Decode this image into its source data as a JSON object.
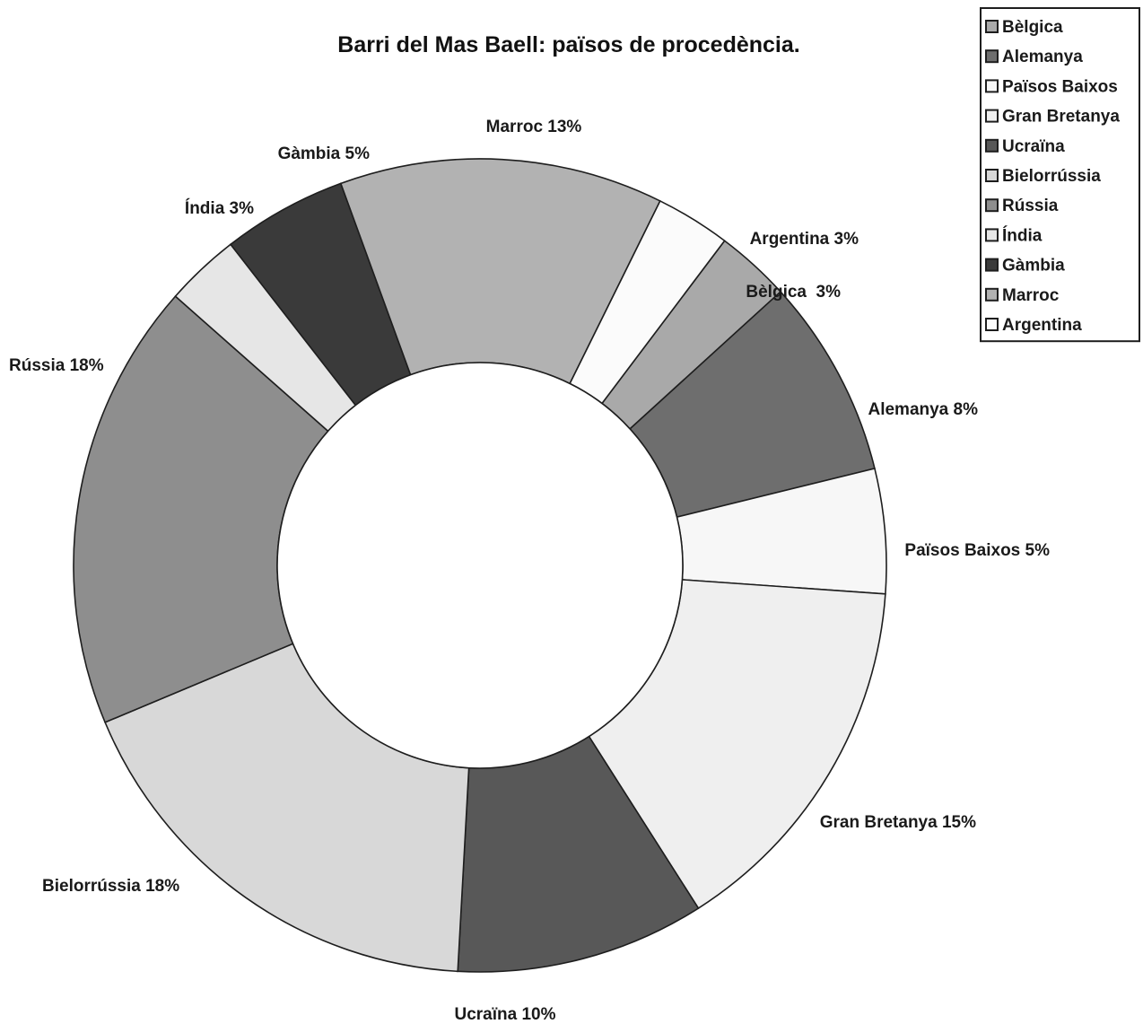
{
  "chart_data": {
    "type": "pie",
    "variant": "donut",
    "title": "Barri del Mas Baell: països de procedència.",
    "unit": "%",
    "slices": [
      {
        "name": "Bèlgica",
        "value": 3,
        "label": "Bèlgica  3%",
        "color": "#a9a9a9"
      },
      {
        "name": "Alemanya",
        "value": 8,
        "label": "Alemanya 8%",
        "color": "#6e6e6e"
      },
      {
        "name": "Països Baixos",
        "value": 5,
        "label": "Països Baixos 5%",
        "color": "#f7f7f7"
      },
      {
        "name": "Gran Bretanya",
        "value": 15,
        "label": "Gran Bretanya 15%",
        "color": "#efefef"
      },
      {
        "name": "Ucraïna",
        "value": 10,
        "label": "Ucraïna 10%",
        "color": "#585858"
      },
      {
        "name": "Bielorrússia",
        "value": 18,
        "label": "Bielorrússia 18%",
        "color": "#d8d8d8"
      },
      {
        "name": "Rússia",
        "value": 18,
        "label": "Rússia 18%",
        "color": "#8e8e8e"
      },
      {
        "name": "Índia",
        "value": 3,
        "label": "Índia 3%",
        "color": "#e6e6e6"
      },
      {
        "name": "Gàmbia",
        "value": 5,
        "label": "Gàmbia 5%",
        "color": "#3a3a3a"
      },
      {
        "name": "Marroc",
        "value": 13,
        "label": "Marroc 13%",
        "color": "#b2b2b2"
      },
      {
        "name": "Argentina",
        "value": 3,
        "label": "Argentina 3%",
        "color": "#fbfbfb"
      }
    ],
    "legend": {
      "position": "top-right",
      "entries": [
        "Bèlgica",
        "Alemanya",
        "Països Baixos",
        "Gran Bretanya",
        "Ucraïna",
        "Bielorrússia",
        "Rússia",
        "Índia",
        "Gàmbia",
        "Marroc",
        "Argentina"
      ]
    }
  }
}
